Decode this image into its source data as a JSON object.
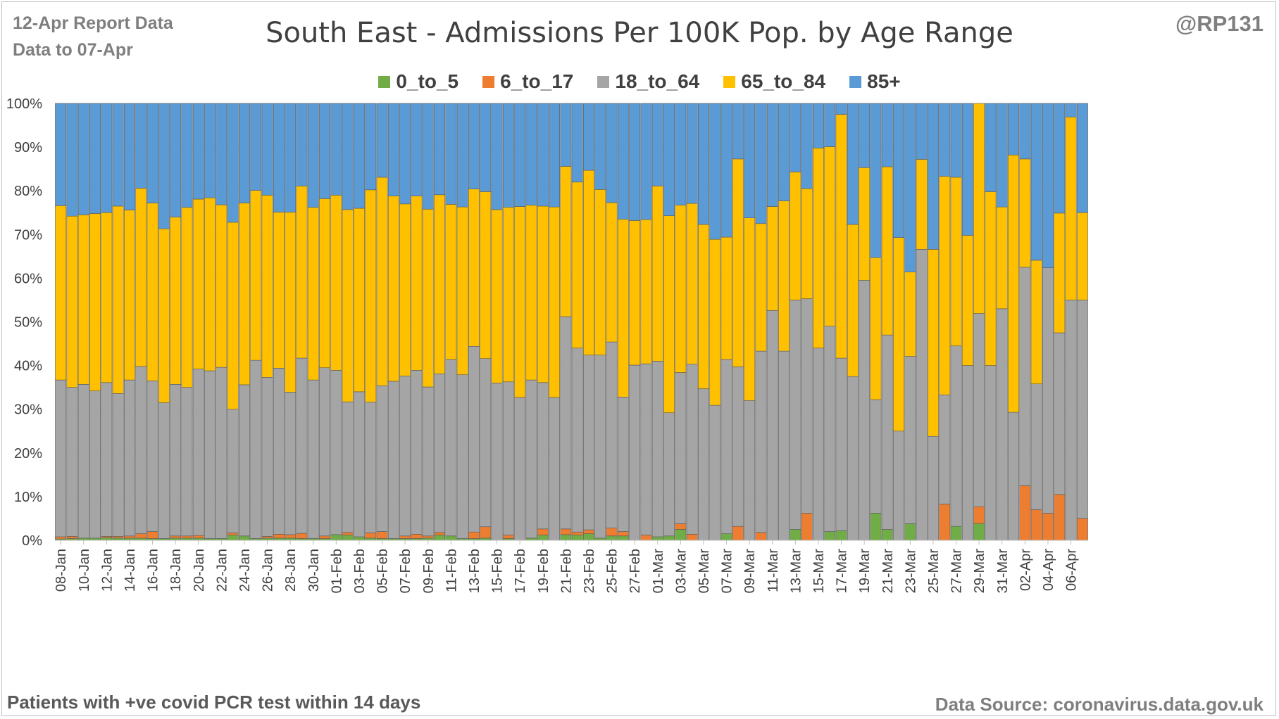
{
  "header": {
    "report_line1": "12-Apr Report Data",
    "report_line2": "Data to 07-Apr",
    "handle": "@RP131"
  },
  "footer": {
    "note": "Patients with  +ve covid PCR test within 14 days",
    "source": "Data Source: coronavirus.data.gov.uk"
  },
  "chart_data": {
    "type": "bar",
    "stacking": "percent",
    "title": "South East - Admissions Per 100K Pop. by Age Range",
    "legend_position": "top",
    "grid": true,
    "ylim": [
      0,
      100
    ],
    "yticks": [
      "0%",
      "10%",
      "20%",
      "30%",
      "40%",
      "50%",
      "60%",
      "70%",
      "80%",
      "90%",
      "100%"
    ],
    "categories": [
      "08-Jan",
      "09-Jan",
      "10-Jan",
      "11-Jan",
      "12-Jan",
      "13-Jan",
      "14-Jan",
      "15-Jan",
      "16-Jan",
      "17-Jan",
      "18-Jan",
      "19-Jan",
      "20-Jan",
      "21-Jan",
      "22-Jan",
      "23-Jan",
      "24-Jan",
      "25-Jan",
      "26-Jan",
      "27-Jan",
      "28-Jan",
      "29-Jan",
      "30-Jan",
      "31-Jan",
      "01-Feb",
      "02-Feb",
      "03-Feb",
      "04-Feb",
      "05-Feb",
      "06-Feb",
      "07-Feb",
      "08-Feb",
      "09-Feb",
      "10-Feb",
      "11-Feb",
      "12-Feb",
      "13-Feb",
      "14-Feb",
      "15-Feb",
      "16-Feb",
      "17-Feb",
      "18-Feb",
      "19-Feb",
      "20-Feb",
      "21-Feb",
      "22-Feb",
      "23-Feb",
      "24-Feb",
      "25-Feb",
      "26-Feb",
      "27-Feb",
      "28-Feb",
      "01-Mar",
      "02-Mar",
      "03-Mar",
      "04-Mar",
      "05-Mar",
      "06-Mar",
      "07-Mar",
      "08-Mar",
      "09-Mar",
      "10-Mar",
      "11-Mar",
      "12-Mar",
      "13-Mar",
      "14-Mar",
      "15-Mar",
      "16-Mar",
      "17-Mar",
      "18-Mar",
      "19-Mar",
      "20-Mar",
      "21-Mar",
      "22-Mar",
      "23-Mar",
      "24-Mar",
      "25-Mar",
      "26-Mar",
      "27-Mar",
      "28-Mar",
      "29-Mar",
      "30-Mar",
      "31-Mar",
      "01-Apr",
      "02-Apr",
      "03-Apr",
      "04-Apr",
      "05-Apr",
      "06-Apr",
      "07-Apr"
    ],
    "xtick_labels": [
      "08-Jan",
      "10-Jan",
      "12-Jan",
      "14-Jan",
      "16-Jan",
      "18-Jan",
      "20-Jan",
      "22-Jan",
      "24-Jan",
      "26-Jan",
      "28-Jan",
      "30-Jan",
      "01-Feb",
      "03-Feb",
      "05-Feb",
      "07-Feb",
      "09-Feb",
      "11-Feb",
      "13-Feb",
      "15-Feb",
      "17-Feb",
      "19-Feb",
      "21-Feb",
      "23-Feb",
      "25-Feb",
      "27-Feb",
      "01-Mar",
      "03-Mar",
      "05-Mar",
      "07-Mar",
      "09-Mar",
      "11-Mar",
      "13-Mar",
      "15-Mar",
      "17-Mar",
      "19-Mar",
      "21-Mar",
      "23-Mar",
      "25-Mar",
      "27-Mar",
      "29-Mar",
      "31-Mar",
      "02-Apr",
      "04-Apr",
      "06-Apr"
    ],
    "series": [
      {
        "name": "0_to_5",
        "color": "#70ad47",
        "values": [
          0.3,
          0.4,
          0.5,
          0.5,
          0.6,
          0.5,
          0.5,
          0.5,
          0.4,
          0.4,
          0.5,
          0.5,
          0.5,
          0.4,
          0.4,
          1.2,
          1.0,
          0.4,
          0.5,
          0.5,
          0.5,
          0.4,
          0.4,
          0.4,
          1.3,
          1.2,
          0.8,
          0.5,
          0.4,
          0.4,
          0.4,
          0.4,
          0.5,
          1.2,
          1.0,
          0.4,
          0.4,
          0.5,
          0,
          0.4,
          0,
          0.5,
          1.2,
          0,
          1.3,
          1.2,
          1.5,
          0.5,
          1.0,
          1.0,
          0,
          0,
          0.8,
          1.0,
          2.5,
          0,
          0,
          0,
          1.5,
          0,
          0,
          0,
          0,
          0,
          2.5,
          0,
          0,
          2.0,
          2.2,
          0,
          0,
          6.2,
          2.5,
          0,
          3.8,
          0,
          0,
          0,
          3.2,
          0,
          4.0,
          0,
          0,
          0,
          0,
          0,
          0,
          0,
          0,
          0
        ]
      },
      {
        "name": "6_to_17",
        "color": "#ed7d31",
        "values": [
          0.5,
          0.5,
          0,
          0,
          0.3,
          0.4,
          0.5,
          1.0,
          1.6,
          0,
          0.5,
          0.5,
          0.6,
          0,
          0,
          0.5,
          0,
          0,
          0.4,
          0.9,
          0.8,
          1.2,
          0,
          0.6,
          0,
          0.6,
          0,
          1.2,
          1.6,
          0,
          0.6,
          1.0,
          0.5,
          0.6,
          0,
          0,
          1.5,
          2.6,
          0,
          0.8,
          0,
          0,
          1.4,
          0,
          1.3,
          0.7,
          0.9,
          0,
          1.8,
          1.0,
          0,
          1.2,
          0,
          0,
          1.3,
          1.4,
          0,
          0,
          0,
          3.2,
          0,
          1.8,
          0,
          0,
          0,
          6.2,
          0,
          0,
          0,
          0,
          0,
          0,
          0,
          0,
          0,
          0,
          0,
          8.3,
          0,
          0,
          4.0,
          0,
          0,
          0,
          12.5,
          7.0,
          6.2,
          10.5,
          0,
          5.0
        ]
      },
      {
        "name": "18_to_64",
        "color": "#a5a5a5",
        "values": [
          35.9,
          34.1,
          35.2,
          33.7,
          35.2,
          32.7,
          35.7,
          38.3,
          34.5,
          31.1,
          34.7,
          34.0,
          38.1,
          38.4,
          39.2,
          28.3,
          34.6,
          40.8,
          36.4,
          38.0,
          32.6,
          40.1,
          36.3,
          38.5,
          37.6,
          29.9,
          33.2,
          29.8,
          33.4,
          36.0,
          36.6,
          37.5,
          34.1,
          36.3,
          40.4,
          37.5,
          42.5,
          38.5,
          36.0,
          35.4,
          32.7,
          36.2,
          33.5,
          32.7,
          48.6,
          42.1,
          40.0,
          41.9,
          42.6,
          30.8,
          40.1,
          39.2,
          40.2,
          28.2,
          34.6,
          38.9,
          34.7,
          30.9,
          39.9,
          36.5,
          32.0,
          41.5,
          52.6,
          43.3,
          52.5,
          49.1,
          44.0,
          47.0,
          39.5,
          37.5,
          59.5,
          26.0,
          44.5,
          25.0,
          38.3,
          66.6,
          23.8,
          25.0,
          41.3,
          40.0,
          46.0,
          40.0,
          53.0,
          29.3,
          50.0,
          28.8,
          56.2,
          37.0,
          55.0,
          50.0
        ]
      },
      {
        "name": "65_to_84",
        "color": "#ffc000",
        "values": [
          39.9,
          39.2,
          38.8,
          40.6,
          38.9,
          42.9,
          38.9,
          40.8,
          40.7,
          39.8,
          38.3,
          41.2,
          38.9,
          39.6,
          37.2,
          42.8,
          41.6,
          38.9,
          41.7,
          35.7,
          41.2,
          39.4,
          39.5,
          38.7,
          40.1,
          44.0,
          42.0,
          48.4,
          47.7,
          42.4,
          39.4,
          39.9,
          40.7,
          41.0,
          35.5,
          38.4,
          36.0,
          38.2,
          39.7,
          40.3,
          43.7,
          40.0,
          40.4,
          43.6,
          34.4,
          38.0,
          42.3,
          37.9,
          31.9,
          40.7,
          33.1,
          33.0,
          40.1,
          45.1,
          38.3,
          36.8,
          37.6,
          38.0,
          28.0,
          47.6,
          41.8,
          29.2,
          23.8,
          34.4,
          29.3,
          25.2,
          45.8,
          41.1,
          55.8,
          34.8,
          25.8,
          32.5,
          38.5,
          44.3,
          19.3,
          20.6,
          42.8,
          50.0,
          38.6,
          29.8,
          50.0,
          39.8,
          23.3,
          58.9,
          24.8,
          28.3,
          0,
          27.4,
          41.9,
          20.0
        ]
      },
      {
        "name": "85+",
        "color": "#5b9bd5",
        "values": [
          23.4,
          25.8,
          25.5,
          25.2,
          25.0,
          23.5,
          24.4,
          19.4,
          22.8,
          28.7,
          26.0,
          23.8,
          21.9,
          21.6,
          23.2,
          27.2,
          22.8,
          19.9,
          21.0,
          24.9,
          24.9,
          18.9,
          23.8,
          21.8,
          21.0,
          24.3,
          24.0,
          19.7,
          16.9,
          21.2,
          23.0,
          21.2,
          24.2,
          20.9,
          23.1,
          23.7,
          19.6,
          20.2,
          24.3,
          24.0,
          23.6,
          23.3,
          23.5,
          23.7,
          14.4,
          18.0,
          15.3,
          19.7,
          22.7,
          26.5,
          26.8,
          26.6,
          18.9,
          25.7,
          23.3,
          22.9,
          27.7,
          31.1,
          30.6,
          12.7,
          26.2,
          27.5,
          23.6,
          22.3,
          15.7,
          19.5,
          10.2,
          9.9,
          2.5,
          27.7,
          14.7,
          35.3,
          14.5,
          30.7,
          38.6,
          12.8,
          33.4,
          16.7,
          16.9,
          30.2,
          0,
          20.2,
          23.7,
          11.8,
          12.7,
          35.9,
          37.6,
          25.1,
          3.1,
          25.0
        ]
      }
    ]
  }
}
